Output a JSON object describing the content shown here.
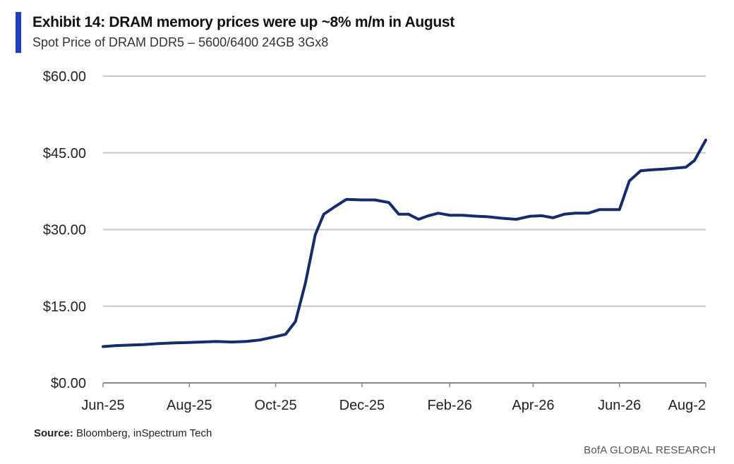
{
  "header": {
    "title": "Exhibit 14: DRAM memory prices were up ~8% m/m in August",
    "subtitle": "Spot Price of DRAM DDR5 – 5600/6400 24GB 3Gx8"
  },
  "footer": {
    "source_label": "Source:",
    "source_text": " Bloomberg, inSpectrum Tech",
    "brand": "BofA GLOBAL RESEARCH"
  },
  "colors": {
    "accent": "#1f3fbf",
    "line": "#142b6f",
    "grid": "#c8c8c8"
  },
  "chart_data": {
    "type": "line",
    "title": "Exhibit 14: DRAM memory prices were up ~8% m/m in August",
    "subtitle": "Spot Price of DRAM DDR5 – 5600/6400 24GB 3Gx8",
    "xlabel": "",
    "ylabel": "",
    "ylim": [
      0,
      60
    ],
    "yticks": [
      0,
      15,
      30,
      45,
      60
    ],
    "ytick_labels": [
      "$0.00",
      "$15.00",
      "$30.00",
      "$45.00",
      "$60.00"
    ],
    "xlim": [
      "2025-06-01",
      "2026-08-01"
    ],
    "xticks": [
      "2025-06-01",
      "2025-08-01",
      "2025-10-01",
      "2025-12-01",
      "2026-02-01",
      "2026-04-01",
      "2026-06-01",
      "2026-08-01"
    ],
    "xtick_labels": [
      "Jun-25",
      "Aug-25",
      "Oct-25",
      "Dec-25",
      "Feb-26",
      "Apr-26",
      "Jun-26",
      "Aug-2"
    ],
    "grid": "horizontal",
    "legend": "none",
    "series": [
      {
        "x": [
          "2025-06-01",
          "2025-06-10",
          "2025-06-20",
          "2025-06-30",
          "2025-07-10",
          "2025-07-20",
          "2025-07-31",
          "2025-08-10",
          "2025-08-20",
          "2025-08-31",
          "2025-09-10",
          "2025-09-20",
          "2025-09-30",
          "2025-10-08",
          "2025-10-15",
          "2025-10-22",
          "2025-10-29",
          "2025-11-04",
          "2025-11-12",
          "2025-11-20",
          "2025-11-30",
          "2025-12-10",
          "2025-12-20",
          "2025-12-27",
          "2026-01-03",
          "2026-01-10",
          "2026-01-17",
          "2026-01-24",
          "2026-02-01",
          "2026-02-10",
          "2026-02-20",
          "2026-02-28",
          "2026-03-10",
          "2026-03-20",
          "2026-03-30",
          "2026-04-07",
          "2026-04-15",
          "2026-04-23",
          "2026-05-01",
          "2026-05-10",
          "2026-05-18",
          "2026-05-25",
          "2026-06-01",
          "2026-06-08",
          "2026-06-16",
          "2026-06-24",
          "2026-07-02",
          "2026-07-10",
          "2026-07-18",
          "2026-07-24",
          "2026-08-01"
        ],
        "values": [
          7.1,
          7.3,
          7.4,
          7.5,
          7.7,
          7.8,
          7.9,
          8.0,
          8.1,
          8.0,
          8.1,
          8.4,
          9.0,
          9.5,
          12.0,
          19.5,
          29.0,
          33.0,
          34.5,
          35.9,
          35.8,
          35.8,
          35.3,
          33.0,
          33.0,
          32.0,
          32.7,
          33.2,
          32.8,
          32.8,
          32.6,
          32.5,
          32.2,
          32.0,
          32.6,
          32.7,
          32.3,
          33.0,
          33.2,
          33.2,
          33.9,
          33.9,
          33.9,
          39.5,
          41.5,
          41.7,
          41.8,
          42.0,
          42.2,
          43.5,
          47.5
        ]
      }
    ]
  }
}
